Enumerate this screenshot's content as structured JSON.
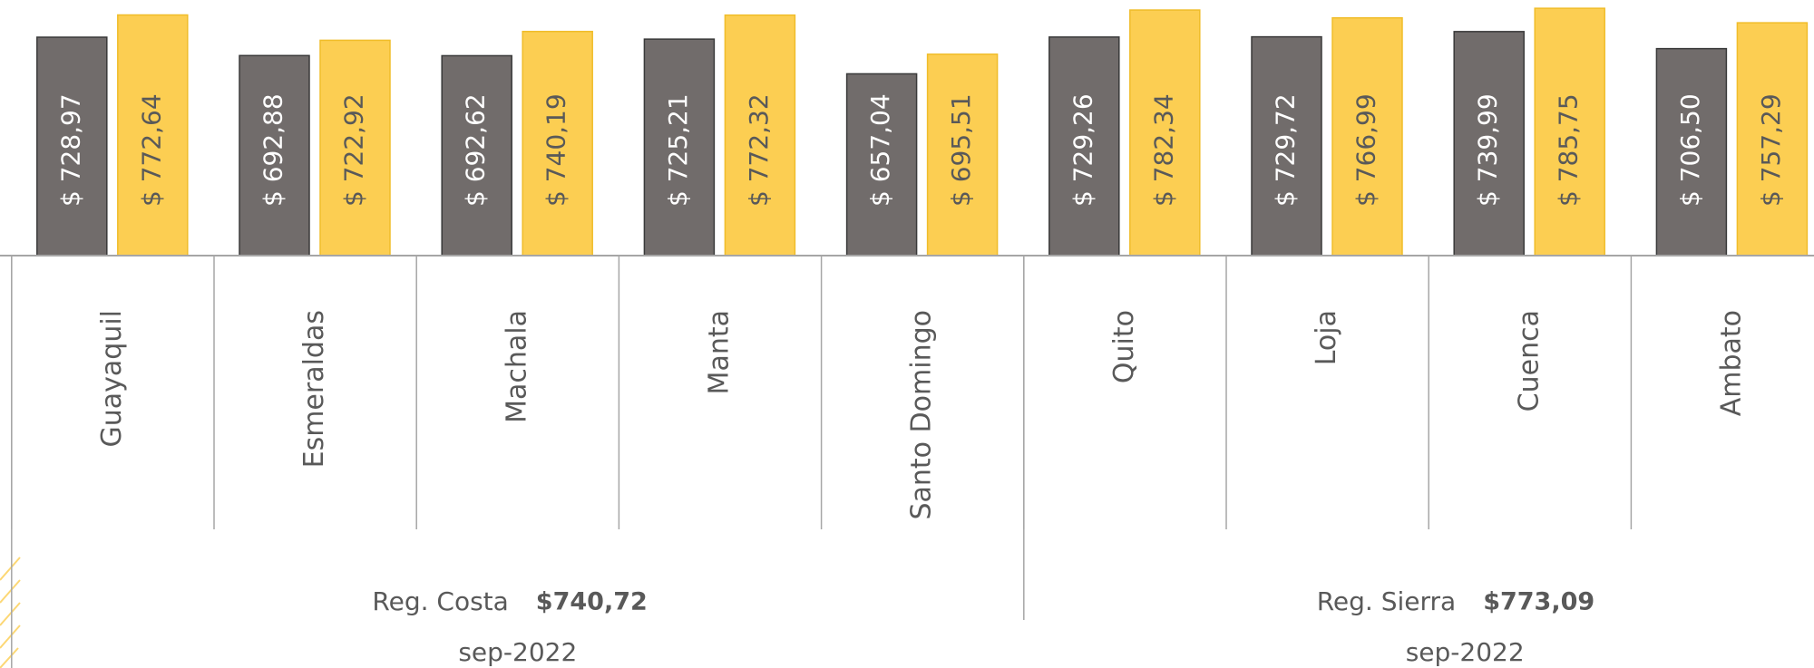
{
  "chart_data": {
    "type": "bar",
    "categories": [
      "Guayaquil",
      "Esmeraldas",
      "Machala",
      "Manta",
      "Santo Domingo",
      "Quito",
      "Loja",
      "Cuenca",
      "Ambato"
    ],
    "series": [
      {
        "color": "#716c6b",
        "values": [
          728.97,
          692.88,
          692.62,
          725.21,
          657.04,
          729.26,
          729.72,
          739.99,
          706.5
        ],
        "value_labels": [
          "$ 728,97",
          "$ 692,88",
          "$ 692,62",
          "$ 725,21",
          "$ 657,04",
          "$ 729,26",
          "$ 729,72",
          "$ 739,99",
          "$ 706,50"
        ]
      },
      {
        "color": "#fcce52",
        "values": [
          772.64,
          722.92,
          740.19,
          772.32,
          695.51,
          782.34,
          766.99,
          785.75,
          757.29
        ],
        "value_labels": [
          "$ 772,64",
          "$ 722,92",
          "$ 740,19",
          "$ 772,32",
          "$ 695,51",
          "$ 782,34",
          "$ 766,99",
          "$ 785,75",
          "$ 757,29"
        ]
      }
    ],
    "ylim": [
      300,
      802
    ],
    "groups": [
      {
        "name": "Reg. Costa",
        "total": "$740,72",
        "date": "sep-2022"
      },
      {
        "name": "Reg. Sierra",
        "total": "$773,09",
        "date": "sep-2022"
      }
    ]
  }
}
